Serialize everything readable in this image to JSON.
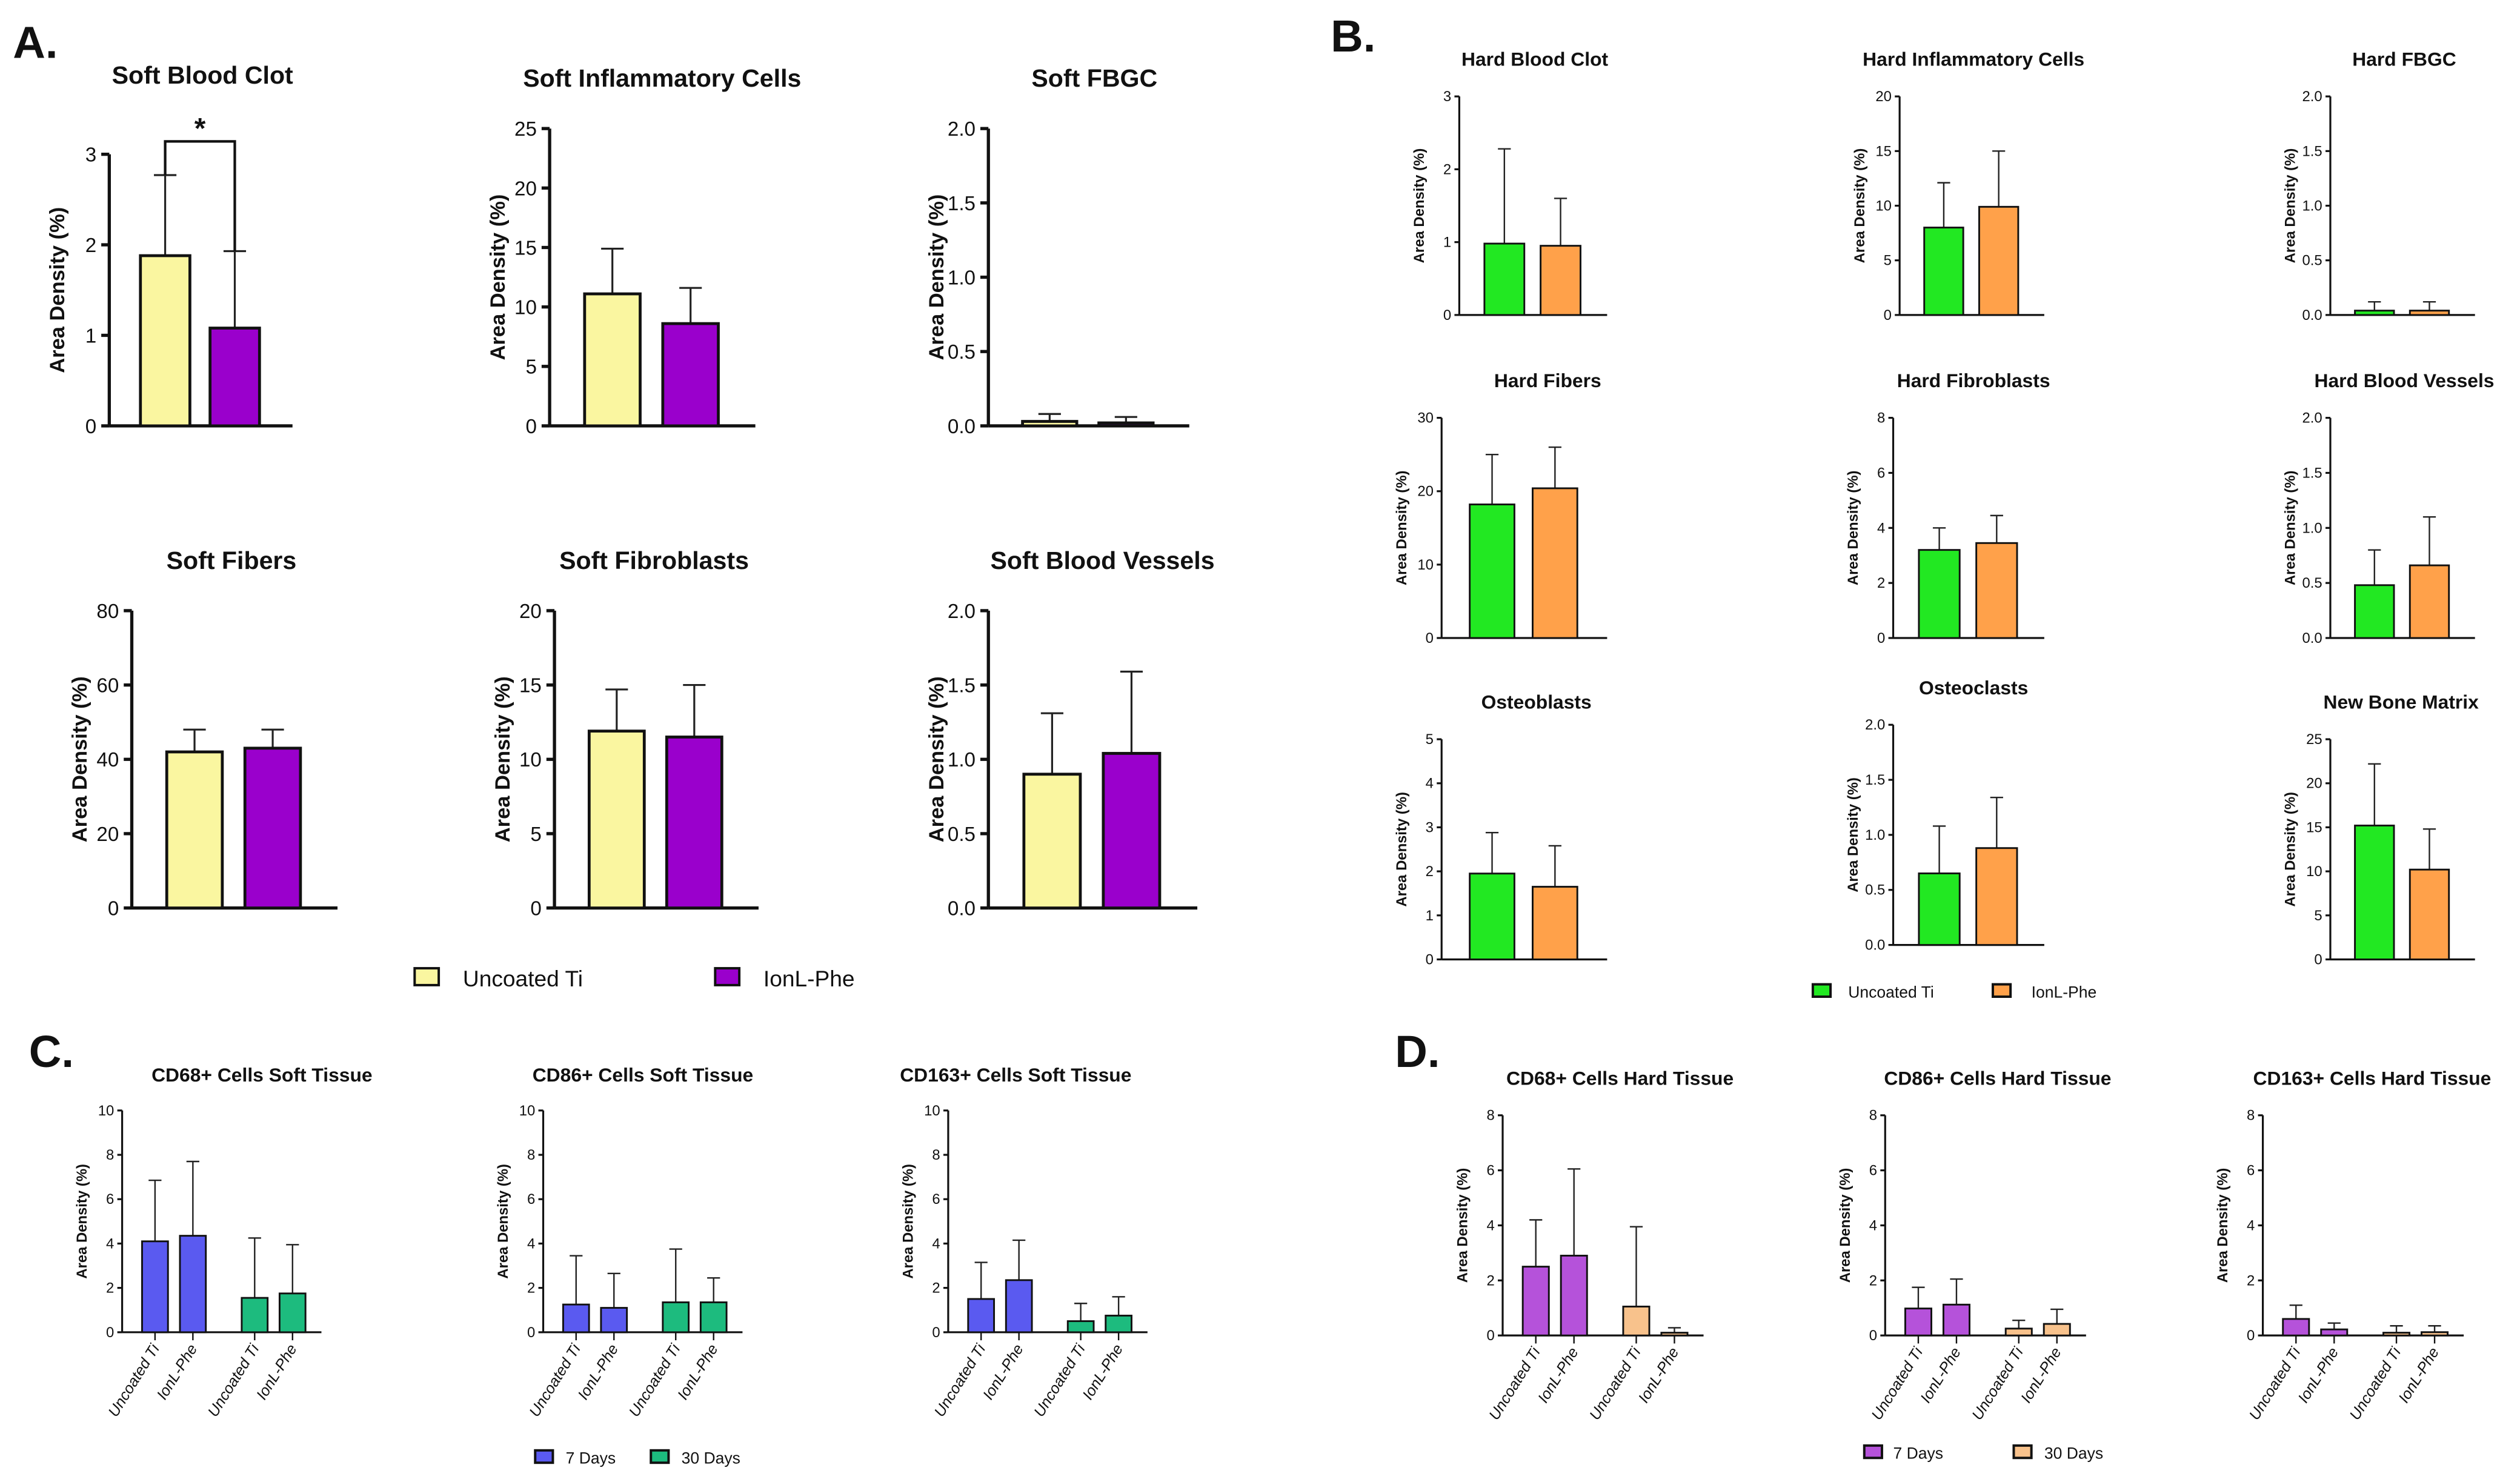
{
  "panels": {
    "A": "A.",
    "B": "B.",
    "C": "C.",
    "D": "D."
  },
  "legends": [
    {
      "panel": "A",
      "items": [
        {
          "label": "Uncoated Ti",
          "color": "#FAF6A0"
        },
        {
          "label": "IonL-Phe",
          "color": "#9A00CC"
        }
      ]
    },
    {
      "panel": "B",
      "items": [
        {
          "label": "Uncoated Ti",
          "color": "#22E822"
        },
        {
          "label": "IonL-Phe",
          "color": "#FFA14A"
        }
      ]
    },
    {
      "panel": "C",
      "items": [
        {
          "label": "7 Days",
          "color": "#5A5AF0"
        },
        {
          "label": "30 Days",
          "color": "#1DBB7E"
        }
      ]
    },
    {
      "panel": "D",
      "items": [
        {
          "label": "7 Days",
          "color": "#B552DA"
        },
        {
          "label": "30 Days",
          "color": "#F8C28C"
        }
      ]
    }
  ],
  "chart_data": [
    {
      "panel": "A",
      "type": "bar",
      "title": "Soft Blood Clot",
      "ylabel": "Area Density (%)",
      "ylim": [
        0,
        3
      ],
      "yticks": [
        "0",
        "1",
        "2",
        "3"
      ],
      "categories": [
        "Uncoated Ti",
        "IonL-Phe"
      ],
      "values": [
        1.88,
        1.08
      ],
      "error_upper": [
        2.77,
        1.93
      ],
      "colors": [
        "#FAF6A0",
        "#9A00CC"
      ],
      "annotations": [
        {
          "text": "*",
          "between": [
            0,
            1
          ]
        }
      ]
    },
    {
      "panel": "A",
      "type": "bar",
      "title": "Soft Inflammatory Cells",
      "ylabel": "Area Density (%)",
      "ylim": [
        0,
        25
      ],
      "yticks": [
        "0",
        "5",
        "10",
        "15",
        "20",
        "25"
      ],
      "categories": [
        "Uncoated Ti",
        "IonL-Phe"
      ],
      "values": [
        11.1,
        8.6
      ],
      "error_upper": [
        14.9,
        11.6
      ],
      "colors": [
        "#FAF6A0",
        "#9A00CC"
      ]
    },
    {
      "panel": "A",
      "type": "bar",
      "title": "Soft FBGC",
      "ylabel": "Area Density (%)",
      "ylim": [
        0,
        2
      ],
      "yticks": [
        "0.0",
        "0.5",
        "1.0",
        "1.5",
        "2.0"
      ],
      "categories": [
        "Uncoated Ti",
        "IonL-Phe"
      ],
      "values": [
        0.03,
        0.02
      ],
      "error_upper": [
        0.08,
        0.06
      ],
      "colors": [
        "#FAF6A0",
        "#9A00CC"
      ]
    },
    {
      "panel": "A",
      "type": "bar",
      "title": "Soft Fibers",
      "ylabel": "Area Density (%)",
      "ylim": [
        0,
        80
      ],
      "yticks": [
        "0",
        "20",
        "40",
        "60",
        "80"
      ],
      "categories": [
        "Uncoated Ti",
        "IonL-Phe"
      ],
      "values": [
        42,
        43
      ],
      "error_upper": [
        48,
        48
      ],
      "colors": [
        "#FAF6A0",
        "#9A00CC"
      ]
    },
    {
      "panel": "A",
      "type": "bar",
      "title": "Soft Fibroblasts",
      "ylabel": "Area Density (%)",
      "ylim": [
        0,
        20
      ],
      "yticks": [
        "0",
        "5",
        "10",
        "15",
        "20"
      ],
      "categories": [
        "Uncoated Ti",
        "IonL-Phe"
      ],
      "values": [
        11.9,
        11.5
      ],
      "error_upper": [
        14.7,
        15.0
      ],
      "colors": [
        "#FAF6A0",
        "#9A00CC"
      ]
    },
    {
      "panel": "A",
      "type": "bar",
      "title": "Soft Blood Vessels",
      "ylabel": "Area Density (%)",
      "ylim": [
        0,
        2
      ],
      "yticks": [
        "0.0",
        "0.5",
        "1.0",
        "1.5",
        "2.0"
      ],
      "categories": [
        "Uncoated Ti",
        "IonL-Phe"
      ],
      "values": [
        0.9,
        1.04
      ],
      "error_upper": [
        1.31,
        1.59
      ],
      "colors": [
        "#FAF6A0",
        "#9A00CC"
      ]
    },
    {
      "panel": "B",
      "type": "bar",
      "title": "Hard Blood Clot",
      "ylabel": "Area Density (%)",
      "ylim": [
        0,
        3
      ],
      "yticks": [
        "0",
        "1",
        "2",
        "3"
      ],
      "categories": [
        "Uncoated Ti",
        "IonL-Phe"
      ],
      "values": [
        0.98,
        0.95
      ],
      "error_upper": [
        2.28,
        1.6
      ],
      "colors": [
        "#22E822",
        "#FFA14A"
      ]
    },
    {
      "panel": "B",
      "type": "bar",
      "title": "Hard Inflammatory Cells",
      "ylabel": "Area Density (%)",
      "ylim": [
        0,
        20
      ],
      "yticks": [
        "0",
        "5",
        "10",
        "15",
        "20"
      ],
      "categories": [
        "Uncoated Ti",
        "IonL-Phe"
      ],
      "values": [
        8.0,
        9.9
      ],
      "error_upper": [
        12.1,
        15.0
      ],
      "colors": [
        "#22E822",
        "#FFA14A"
      ]
    },
    {
      "panel": "B",
      "type": "bar",
      "title": "Hard FBGC",
      "ylabel": "Area Density (%)",
      "ylim": [
        0,
        2
      ],
      "yticks": [
        "0.0",
        "0.5",
        "1.0",
        "1.5",
        "2.0"
      ],
      "categories": [
        "Uncoated Ti",
        "IonL-Phe"
      ],
      "values": [
        0.04,
        0.04
      ],
      "error_upper": [
        0.12,
        0.12
      ],
      "colors": [
        "#22E822",
        "#FFA14A"
      ]
    },
    {
      "panel": "B",
      "type": "bar",
      "title": "Hard Fibers",
      "ylabel": "Area Density (%)",
      "ylim": [
        0,
        30
      ],
      "yticks": [
        "0",
        "10",
        "20",
        "30"
      ],
      "categories": [
        "Uncoated Ti",
        "IonL-Phe"
      ],
      "values": [
        18.2,
        20.4
      ],
      "error_upper": [
        25,
        26
      ],
      "colors": [
        "#22E822",
        "#FFA14A"
      ]
    },
    {
      "panel": "B",
      "type": "bar",
      "title": "Hard Fibroblasts",
      "ylabel": "Area Density (%)",
      "ylim": [
        0,
        8
      ],
      "yticks": [
        "0",
        "2",
        "4",
        "6",
        "8"
      ],
      "categories": [
        "Uncoated Ti",
        "IonL-Phe"
      ],
      "values": [
        3.2,
        3.45
      ],
      "error_upper": [
        4.0,
        4.45
      ],
      "colors": [
        "#22E822",
        "#FFA14A"
      ]
    },
    {
      "panel": "B",
      "type": "bar",
      "title": "Hard Blood Vessels",
      "ylabel": "Area Density (%)",
      "ylim": [
        0,
        2
      ],
      "yticks": [
        "0.0",
        "0.5",
        "1.0",
        "1.5",
        "2.0"
      ],
      "categories": [
        "Uncoated Ti",
        "IonL-Phe"
      ],
      "values": [
        0.48,
        0.66
      ],
      "error_upper": [
        0.8,
        1.1
      ],
      "colors": [
        "#22E822",
        "#FFA14A"
      ]
    },
    {
      "panel": "B",
      "type": "bar",
      "title": "Osteoblasts",
      "ylabel": "Area Density (%)",
      "ylim": [
        0,
        5
      ],
      "yticks": [
        "0",
        "1",
        "2",
        "3",
        "4",
        "5"
      ],
      "categories": [
        "Uncoated Ti",
        "IonL-Phe"
      ],
      "values": [
        1.95,
        1.65
      ],
      "error_upper": [
        2.88,
        2.58
      ],
      "colors": [
        "#22E822",
        "#FFA14A"
      ]
    },
    {
      "panel": "B",
      "type": "bar",
      "title": "Osteoclasts",
      "ylabel": "Area Density (%)",
      "ylim": [
        0,
        2
      ],
      "yticks": [
        "0.0",
        "0.5",
        "1.0",
        "1.5",
        "2.0"
      ],
      "categories": [
        "Uncoated Ti",
        "IonL-Phe"
      ],
      "values": [
        0.65,
        0.88
      ],
      "error_upper": [
        1.08,
        1.34
      ],
      "colors": [
        "#22E822",
        "#FFA14A"
      ]
    },
    {
      "panel": "B",
      "type": "bar",
      "title": "New Bone Matrix",
      "ylabel": "Area Density (%)",
      "ylim": [
        0,
        25
      ],
      "yticks": [
        "0",
        "5",
        "10",
        "15",
        "20",
        "25"
      ],
      "categories": [
        "Uncoated Ti",
        "IonL-Phe"
      ],
      "values": [
        15.2,
        10.2
      ],
      "error_upper": [
        22.2,
        14.8
      ],
      "colors": [
        "#22E822",
        "#FFA14A"
      ]
    },
    {
      "panel": "C",
      "type": "bar",
      "title": "CD68+ Cells Soft Tissue",
      "ylabel": "Area Density (%)",
      "ylim": [
        0,
        10
      ],
      "yticks": [
        "0",
        "2",
        "4",
        "6",
        "8",
        "10"
      ],
      "categories": [
        "Uncoated Ti",
        "IonL-Phe",
        "Uncoated Ti",
        "IonL-Phe"
      ],
      "values": [
        4.1,
        4.35,
        1.55,
        1.75
      ],
      "error_upper": [
        6.85,
        7.7,
        4.25,
        3.95
      ],
      "colors": [
        "#5A5AF0",
        "#5A5AF0",
        "#1DBB7E",
        "#1DBB7E"
      ]
    },
    {
      "panel": "C",
      "type": "bar",
      "title": "CD86+ Cells Soft Tissue",
      "ylabel": "Area Density (%)",
      "ylim": [
        0,
        10
      ],
      "yticks": [
        "0",
        "2",
        "4",
        "6",
        "8",
        "10"
      ],
      "categories": [
        "Uncoated Ti",
        "IonL-Phe",
        "Uncoated Ti",
        "IonL-Phe"
      ],
      "values": [
        1.25,
        1.1,
        1.35,
        1.35
      ],
      "error_upper": [
        3.45,
        2.65,
        3.75,
        2.45
      ],
      "colors": [
        "#5A5AF0",
        "#5A5AF0",
        "#1DBB7E",
        "#1DBB7E"
      ]
    },
    {
      "panel": "C",
      "type": "bar",
      "title": "CD163+ Cells Soft Tissue",
      "ylabel": "Area Density (%)",
      "ylim": [
        0,
        10
      ],
      "yticks": [
        "0",
        "2",
        "4",
        "6",
        "8",
        "10"
      ],
      "categories": [
        "Uncoated Ti",
        "IonL-Phe",
        "Uncoated Ti",
        "IonL-Phe"
      ],
      "values": [
        1.5,
        2.35,
        0.5,
        0.75
      ],
      "error_upper": [
        3.15,
        4.15,
        1.3,
        1.6
      ],
      "colors": [
        "#5A5AF0",
        "#5A5AF0",
        "#1DBB7E",
        "#1DBB7E"
      ]
    },
    {
      "panel": "D",
      "type": "bar",
      "title": "CD68+ Cells Hard Tissue",
      "ylabel": "Area Density (%)",
      "ylim": [
        0,
        8
      ],
      "yticks": [
        "0",
        "2",
        "4",
        "6",
        "8"
      ],
      "categories": [
        "Uncoated Ti",
        "IonL-Phe",
        "Uncoated Ti",
        "IonL-Phe"
      ],
      "values": [
        2.5,
        2.9,
        1.05,
        0.1
      ],
      "error_upper": [
        4.2,
        6.05,
        3.95,
        0.28
      ],
      "colors": [
        "#B552DA",
        "#B552DA",
        "#F8C28C",
        "#F8C28C"
      ]
    },
    {
      "panel": "D",
      "type": "bar",
      "title": "CD86+ Cells Hard Tissue",
      "ylabel": "Area Density (%)",
      "ylim": [
        0,
        8
      ],
      "yticks": [
        "0",
        "2",
        "4",
        "6",
        "8"
      ],
      "categories": [
        "Uncoated Ti",
        "IonL-Phe",
        "Uncoated Ti",
        "IonL-Phe"
      ],
      "values": [
        0.98,
        1.12,
        0.25,
        0.42
      ],
      "error_upper": [
        1.75,
        2.05,
        0.55,
        0.95
      ],
      "colors": [
        "#B552DA",
        "#B552DA",
        "#F8C28C",
        "#F8C28C"
      ]
    },
    {
      "panel": "D",
      "type": "bar",
      "title": "CD163+ Cells Hard Tissue",
      "ylabel": "Area Density (%)",
      "ylim": [
        0,
        8
      ],
      "yticks": [
        "0",
        "2",
        "4",
        "6",
        "8"
      ],
      "categories": [
        "Uncoated Ti",
        "IonL-Phe",
        "Uncoated Ti",
        "IonL-Phe"
      ],
      "values": [
        0.6,
        0.22,
        0.1,
        0.12
      ],
      "error_upper": [
        1.1,
        0.45,
        0.35,
        0.35
      ],
      "colors": [
        "#B552DA",
        "#B552DA",
        "#F8C28C",
        "#F8C28C"
      ]
    }
  ]
}
